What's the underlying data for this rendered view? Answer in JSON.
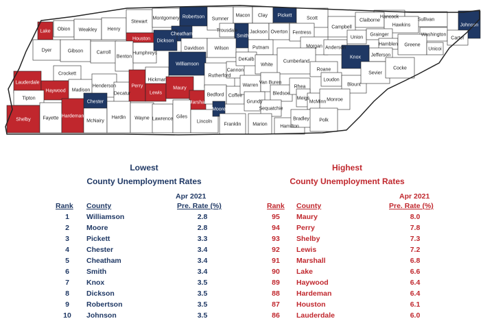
{
  "colors": {
    "low": "#1f3864",
    "high": "#c0272d",
    "neutral": "#ffffff",
    "border": "#222222"
  },
  "map_counties": [
    {
      "name": "Lake",
      "tier": "high"
    },
    {
      "name": "Obion",
      "tier": "none"
    },
    {
      "name": "Weakley",
      "tier": "none"
    },
    {
      "name": "Henry",
      "tier": "none"
    },
    {
      "name": "Stewart",
      "tier": "none"
    },
    {
      "name": "Montgomery",
      "tier": "none"
    },
    {
      "name": "Robertson",
      "tier": "low"
    },
    {
      "name": "Sumner",
      "tier": "none"
    },
    {
      "name": "Macon",
      "tier": "none"
    },
    {
      "name": "Clay",
      "tier": "none"
    },
    {
      "name": "Pickett",
      "tier": "low"
    },
    {
      "name": "Scott",
      "tier": "none"
    },
    {
      "name": "Hancock",
      "tier": "none"
    },
    {
      "name": "Sullivan",
      "tier": "none"
    },
    {
      "name": "Johnson",
      "tier": "low"
    },
    {
      "name": "Houston",
      "tier": "high"
    },
    {
      "name": "Cheatham",
      "tier": "low"
    },
    {
      "name": "Trousdale",
      "tier": "none"
    },
    {
      "name": "Smith",
      "tier": "low"
    },
    {
      "name": "Jackson",
      "tier": "none"
    },
    {
      "name": "Overton",
      "tier": "none"
    },
    {
      "name": "Fentress",
      "tier": "none"
    },
    {
      "name": "Campbell",
      "tier": "none"
    },
    {
      "name": "Claiborne",
      "tier": "none"
    },
    {
      "name": "Hawkins",
      "tier": "none"
    },
    {
      "name": "Washington",
      "tier": "none"
    },
    {
      "name": "Carter",
      "tier": "none"
    },
    {
      "name": "Dyer",
      "tier": "none"
    },
    {
      "name": "Gibson",
      "tier": "none"
    },
    {
      "name": "Carroll",
      "tier": "none"
    },
    {
      "name": "Benton",
      "tier": "none"
    },
    {
      "name": "Humphreys",
      "tier": "none"
    },
    {
      "name": "Dickson",
      "tier": "low"
    },
    {
      "name": "Davidson",
      "tier": "none"
    },
    {
      "name": "Wilson",
      "tier": "none"
    },
    {
      "name": "Putnam",
      "tier": "none"
    },
    {
      "name": "Morgan",
      "tier": "none"
    },
    {
      "name": "Anderson",
      "tier": "none"
    },
    {
      "name": "Union",
      "tier": "none"
    },
    {
      "name": "Grainger",
      "tier": "none"
    },
    {
      "name": "Hamblen",
      "tier": "none"
    },
    {
      "name": "Greene",
      "tier": "none"
    },
    {
      "name": "Unicoi",
      "tier": "none"
    },
    {
      "name": "Jefferson",
      "tier": "none"
    },
    {
      "name": "Knox",
      "tier": "low"
    },
    {
      "name": "Lauderdale",
      "tier": "high"
    },
    {
      "name": "Crockett",
      "tier": "none"
    },
    {
      "name": "Haywood",
      "tier": "high"
    },
    {
      "name": "Madison",
      "tier": "none"
    },
    {
      "name": "Henderson",
      "tier": "none"
    },
    {
      "name": "Decatur",
      "tier": "none"
    },
    {
      "name": "Perry",
      "tier": "high"
    },
    {
      "name": "Hickman",
      "tier": "none"
    },
    {
      "name": "Lewis",
      "tier": "high"
    },
    {
      "name": "Williamson",
      "tier": "low"
    },
    {
      "name": "Maury",
      "tier": "high"
    },
    {
      "name": "Rutherford",
      "tier": "none"
    },
    {
      "name": "Cannon",
      "tier": "none"
    },
    {
      "name": "DeKalb",
      "tier": "none"
    },
    {
      "name": "White",
      "tier": "none"
    },
    {
      "name": "Cumberland",
      "tier": "none"
    },
    {
      "name": "Roane",
      "tier": "none"
    },
    {
      "name": "Loudon",
      "tier": "none"
    },
    {
      "name": "Blount",
      "tier": "none"
    },
    {
      "name": "Sevier",
      "tier": "none"
    },
    {
      "name": "Cocke",
      "tier": "none"
    },
    {
      "name": "Tipton",
      "tier": "none"
    },
    {
      "name": "Chester",
      "tier": "low"
    },
    {
      "name": "Marshall",
      "tier": "high"
    },
    {
      "name": "Bedford",
      "tier": "none"
    },
    {
      "name": "Coffee",
      "tier": "none"
    },
    {
      "name": "Warren",
      "tier": "none"
    },
    {
      "name": "Van Buren",
      "tier": "none"
    },
    {
      "name": "Bledsoe",
      "tier": "none"
    },
    {
      "name": "Rhea",
      "tier": "none"
    },
    {
      "name": "Meigs",
      "tier": "none"
    },
    {
      "name": "McMinn",
      "tier": "none"
    },
    {
      "name": "Monroe",
      "tier": "none"
    },
    {
      "name": "Shelby",
      "tier": "high"
    },
    {
      "name": "Fayette",
      "tier": "none"
    },
    {
      "name": "Hardeman",
      "tier": "high"
    },
    {
      "name": "McNairy",
      "tier": "none"
    },
    {
      "name": "Hardin",
      "tier": "none"
    },
    {
      "name": "Wayne",
      "tier": "none"
    },
    {
      "name": "Lawrence",
      "tier": "none"
    },
    {
      "name": "Giles",
      "tier": "none"
    },
    {
      "name": "Lincoln",
      "tier": "none"
    },
    {
      "name": "Moore",
      "tier": "low"
    },
    {
      "name": "Franklin",
      "tier": "none"
    },
    {
      "name": "Grundy",
      "tier": "none"
    },
    {
      "name": "Sequatchie",
      "tier": "none"
    },
    {
      "name": "Marion",
      "tier": "none"
    },
    {
      "name": "Hamilton",
      "tier": "none"
    },
    {
      "name": "Bradley",
      "tier": "none"
    },
    {
      "name": "Polk",
      "tier": "none"
    }
  ],
  "lowest": {
    "title_line1": "Lowest",
    "title_line2": "County Unemployment Rates",
    "rank_header": "Rank",
    "county_header": "County",
    "period": "Apr 2021",
    "rate_header_pre": "Pre.",
    "rate_header_rest": " Rate (%)",
    "rows": [
      {
        "rank": "1",
        "county": "Williamson",
        "rate": "2.8"
      },
      {
        "rank": "2",
        "county": "Moore",
        "rate": "2.8"
      },
      {
        "rank": "3",
        "county": "Pickett",
        "rate": "3.3"
      },
      {
        "rank": "4",
        "county": "Chester",
        "rate": "3.4"
      },
      {
        "rank": "5",
        "county": "Cheatham",
        "rate": "3.4"
      },
      {
        "rank": "6",
        "county": "Smith",
        "rate": "3.4"
      },
      {
        "rank": "7",
        "county": "Knox",
        "rate": "3.5"
      },
      {
        "rank": "8",
        "county": "Dickson",
        "rate": "3.5"
      },
      {
        "rank": "9",
        "county": "Robertson",
        "rate": "3.5"
      },
      {
        "rank": "10",
        "county": "Johnson",
        "rate": "3.5"
      }
    ]
  },
  "highest": {
    "title_line1": "Highest",
    "title_line2": "County Unemployment Rates",
    "rank_header": "Rank",
    "county_header": "County",
    "period": "Apr 2021",
    "rate_header_pre": "Pre.",
    "rate_header_rest": " Rate (%)",
    "rows": [
      {
        "rank": "95",
        "county": "Maury",
        "rate": "8.0"
      },
      {
        "rank": "94",
        "county": "Perry",
        "rate": "7.8"
      },
      {
        "rank": "93",
        "county": "Shelby",
        "rate": "7.3"
      },
      {
        "rank": "92",
        "county": "Lewis",
        "rate": "7.2"
      },
      {
        "rank": "91",
        "county": "Marshall",
        "rate": "6.8"
      },
      {
        "rank": "90",
        "county": "Lake",
        "rate": "6.6"
      },
      {
        "rank": "89",
        "county": "Haywood",
        "rate": "6.4"
      },
      {
        "rank": "88",
        "county": "Hardeman",
        "rate": "6.4"
      },
      {
        "rank": "87",
        "county": "Houston",
        "rate": "6.1"
      },
      {
        "rank": "86",
        "county": "Lauderdale",
        "rate": "6.0"
      }
    ]
  }
}
